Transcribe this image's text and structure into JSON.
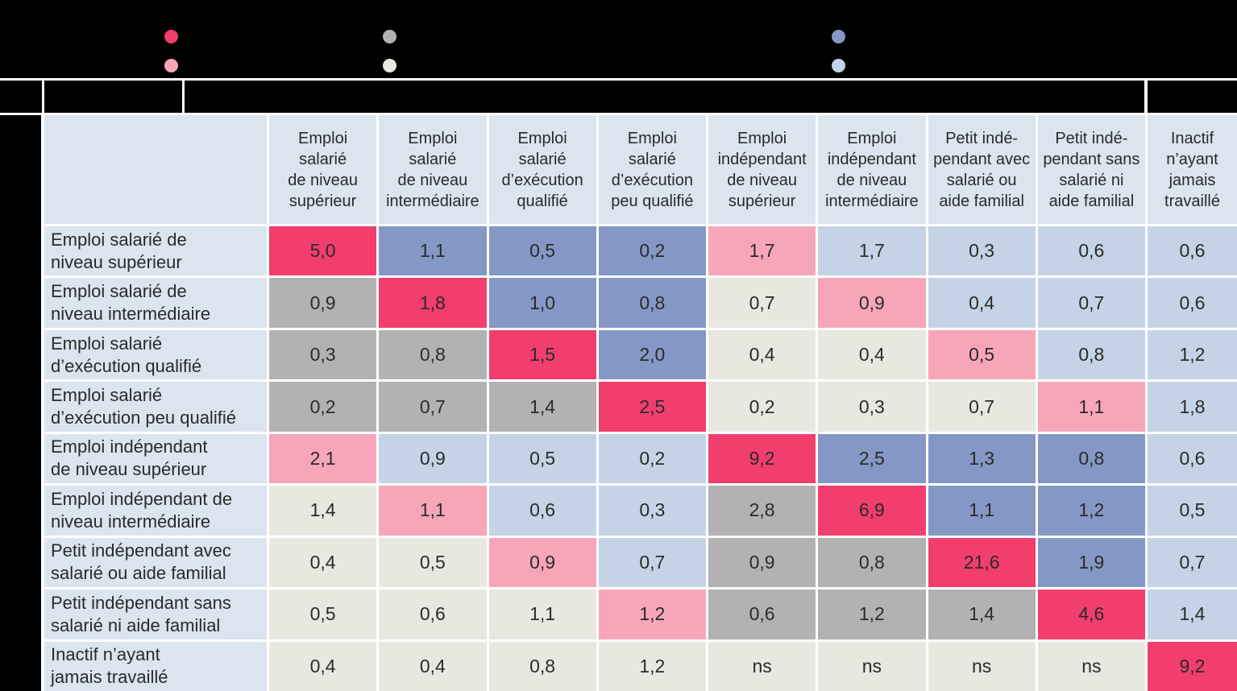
{
  "colors": {
    "red": "#F23E6C",
    "pink": "#F7A6B9",
    "gray": "#B2B2B2",
    "beige": "#E8E7E0",
    "dblue": "#8598C5",
    "lblue": "#C4D4E6",
    "header_bg": "#DBE5F0",
    "panel_black": "#000000",
    "cell_text": "#2A2A2A"
  },
  "legend": {
    "swatches": [
      {
        "name": "diagonal-red",
        "color_key": "red"
      },
      {
        "name": "light-pink",
        "color_key": "pink"
      },
      {
        "name": "gray",
        "color_key": "gray"
      },
      {
        "name": "light-beige",
        "color_key": "beige"
      },
      {
        "name": "dark-blue",
        "color_key": "dblue"
      },
      {
        "name": "light-blue",
        "color_key": "lblue"
      }
    ]
  },
  "table": {
    "corner_label": "",
    "column_headers": [
      "Emploi\nsalarié\nde niveau\nsupérieur",
      "Emploi\nsalarié\nde niveau\nintermédiaire",
      "Emploi\nsalarié\nd’exécution\nqualifié",
      "Emploi\nsalarié\nd’exécution\npeu qualifié",
      "Emploi\nindépendant\nde niveau\nsupérieur",
      "Emploi\nindépendant\nde niveau\nintermédiaire",
      "Petit indé-\npendant avec\nsalarié ou\naide familial",
      "Petit indé-\npendant sans\nsalarié ni\naide familial",
      "Inactif\nn’ayant\njamais\ntravaillé"
    ],
    "rows": [
      {
        "label": "Emploi salarié de\nniveau supérieur",
        "cells": [
          {
            "v": "5,0",
            "c": "red"
          },
          {
            "v": "1,1",
            "c": "dblue"
          },
          {
            "v": "0,5",
            "c": "dblue"
          },
          {
            "v": "0,2",
            "c": "dblue"
          },
          {
            "v": "1,7",
            "c": "pink"
          },
          {
            "v": "1,7",
            "c": "lblue"
          },
          {
            "v": "0,3",
            "c": "lblue"
          },
          {
            "v": "0,6",
            "c": "lblue"
          },
          {
            "v": "0,6",
            "c": "lblue"
          }
        ]
      },
      {
        "label": "Emploi salarié de\nniveau intermédiaire",
        "cells": [
          {
            "v": "0,9",
            "c": "gray"
          },
          {
            "v": "1,8",
            "c": "red"
          },
          {
            "v": "1,0",
            "c": "dblue"
          },
          {
            "v": "0,8",
            "c": "dblue"
          },
          {
            "v": "0,7",
            "c": "beige"
          },
          {
            "v": "0,9",
            "c": "pink"
          },
          {
            "v": "0,4",
            "c": "lblue"
          },
          {
            "v": "0,7",
            "c": "lblue"
          },
          {
            "v": "0,6",
            "c": "lblue"
          }
        ]
      },
      {
        "label": "Emploi salarié\nd’exécution qualifié",
        "cells": [
          {
            "v": "0,3",
            "c": "gray"
          },
          {
            "v": "0,8",
            "c": "gray"
          },
          {
            "v": "1,5",
            "c": "red"
          },
          {
            "v": "2,0",
            "c": "dblue"
          },
          {
            "v": "0,4",
            "c": "beige"
          },
          {
            "v": "0,4",
            "c": "beige"
          },
          {
            "v": "0,5",
            "c": "pink"
          },
          {
            "v": "0,8",
            "c": "lblue"
          },
          {
            "v": "1,2",
            "c": "lblue"
          }
        ]
      },
      {
        "label": "Emploi salarié\nd’exécution peu qualifié",
        "cells": [
          {
            "v": "0,2",
            "c": "gray"
          },
          {
            "v": "0,7",
            "c": "gray"
          },
          {
            "v": "1,4",
            "c": "gray"
          },
          {
            "v": "2,5",
            "c": "red"
          },
          {
            "v": "0,2",
            "c": "beige"
          },
          {
            "v": "0,3",
            "c": "beige"
          },
          {
            "v": "0,7",
            "c": "beige"
          },
          {
            "v": "1,1",
            "c": "pink"
          },
          {
            "v": "1,8",
            "c": "lblue"
          }
        ]
      },
      {
        "label": "Emploi indépendant\nde niveau supérieur",
        "cells": [
          {
            "v": "2,1",
            "c": "pink"
          },
          {
            "v": "0,9",
            "c": "lblue"
          },
          {
            "v": "0,5",
            "c": "lblue"
          },
          {
            "v": "0,2",
            "c": "lblue"
          },
          {
            "v": "9,2",
            "c": "red"
          },
          {
            "v": "2,5",
            "c": "dblue"
          },
          {
            "v": "1,3",
            "c": "dblue"
          },
          {
            "v": "0,8",
            "c": "dblue"
          },
          {
            "v": "0,6",
            "c": "lblue"
          }
        ]
      },
      {
        "label": "Emploi indépendant de\nniveau intermédiaire",
        "cells": [
          {
            "v": "1,4",
            "c": "beige"
          },
          {
            "v": "1,1",
            "c": "pink"
          },
          {
            "v": "0,6",
            "c": "lblue"
          },
          {
            "v": "0,3",
            "c": "lblue"
          },
          {
            "v": "2,8",
            "c": "gray"
          },
          {
            "v": "6,9",
            "c": "red"
          },
          {
            "v": "1,1",
            "c": "dblue"
          },
          {
            "v": "1,2",
            "c": "dblue"
          },
          {
            "v": "0,5",
            "c": "lblue"
          }
        ]
      },
      {
        "label": "Petit indépendant avec\nsalarié ou aide familial",
        "cells": [
          {
            "v": "0,4",
            "c": "beige"
          },
          {
            "v": "0,5",
            "c": "beige"
          },
          {
            "v": "0,9",
            "c": "pink"
          },
          {
            "v": "0,7",
            "c": "lblue"
          },
          {
            "v": "0,9",
            "c": "gray"
          },
          {
            "v": "0,8",
            "c": "gray"
          },
          {
            "v": "21,6",
            "c": "red"
          },
          {
            "v": "1,9",
            "c": "dblue"
          },
          {
            "v": "0,7",
            "c": "lblue"
          }
        ]
      },
      {
        "label": "Petit indépendant sans\nsalarié ni aide familial",
        "cells": [
          {
            "v": "0,5",
            "c": "beige"
          },
          {
            "v": "0,6",
            "c": "beige"
          },
          {
            "v": "1,1",
            "c": "beige"
          },
          {
            "v": "1,2",
            "c": "pink"
          },
          {
            "v": "0,6",
            "c": "gray"
          },
          {
            "v": "1,2",
            "c": "gray"
          },
          {
            "v": "1,4",
            "c": "gray"
          },
          {
            "v": "4,6",
            "c": "red"
          },
          {
            "v": "1,4",
            "c": "lblue"
          }
        ]
      },
      {
        "label": "Inactif n’ayant\njamais travaillé",
        "cells": [
          {
            "v": "0,4",
            "c": "beige"
          },
          {
            "v": "0,4",
            "c": "beige"
          },
          {
            "v": "0,8",
            "c": "beige"
          },
          {
            "v": "1,2",
            "c": "beige"
          },
          {
            "v": "ns",
            "c": "beige"
          },
          {
            "v": "ns",
            "c": "beige"
          },
          {
            "v": "ns",
            "c": "beige"
          },
          {
            "v": "ns",
            "c": "beige"
          },
          {
            "v": "9,2",
            "c": "red"
          }
        ]
      }
    ]
  },
  "chart_data": {
    "type": "heatmap",
    "title": "",
    "rows": [
      "Emploi salarié de niveau supérieur",
      "Emploi salarié de niveau intermédiaire",
      "Emploi salarié d’exécution qualifié",
      "Emploi salarié d’exécution peu qualifié",
      "Emploi indépendant de niveau supérieur",
      "Emploi indépendant de niveau intermédiaire",
      "Petit indépendant avec salarié ou aide familial",
      "Petit indépendant sans salarié ni aide familial",
      "Inactif n’ayant jamais travaillé"
    ],
    "columns": [
      "Emploi salarié de niveau supérieur",
      "Emploi salarié de niveau intermédiaire",
      "Emploi salarié d’exécution qualifié",
      "Emploi salarié d’exécution peu qualifié",
      "Emploi indépendant de niveau supérieur",
      "Emploi indépendant de niveau intermédiaire",
      "Petit indépendant avec salarié ou aide familial",
      "Petit indépendant sans salarié ni aide familial",
      "Inactif n’ayant jamais travaillé"
    ],
    "values": [
      [
        5.0,
        1.1,
        0.5,
        0.2,
        1.7,
        1.7,
        0.3,
        0.6,
        0.6
      ],
      [
        0.9,
        1.8,
        1.0,
        0.8,
        0.7,
        0.9,
        0.4,
        0.7,
        0.6
      ],
      [
        0.3,
        0.8,
        1.5,
        2.0,
        0.4,
        0.4,
        0.5,
        0.8,
        1.2
      ],
      [
        0.2,
        0.7,
        1.4,
        2.5,
        0.2,
        0.3,
        0.7,
        1.1,
        1.8
      ],
      [
        2.1,
        0.9,
        0.5,
        0.2,
        9.2,
        2.5,
        1.3,
        0.8,
        0.6
      ],
      [
        1.4,
        1.1,
        0.6,
        0.3,
        2.8,
        6.9,
        1.1,
        1.2,
        0.5
      ],
      [
        0.4,
        0.5,
        0.9,
        0.7,
        0.9,
        0.8,
        21.6,
        1.9,
        0.7
      ],
      [
        0.5,
        0.6,
        1.1,
        1.2,
        0.6,
        1.2,
        1.4,
        4.6,
        1.4
      ],
      [
        0.4,
        0.4,
        0.8,
        1.2,
        null,
        null,
        null,
        null,
        9.2
      ]
    ],
    "not_significant_marker": "ns",
    "cell_color_keys": [
      [
        "red",
        "dblue",
        "dblue",
        "dblue",
        "pink",
        "lblue",
        "lblue",
        "lblue",
        "lblue"
      ],
      [
        "gray",
        "red",
        "dblue",
        "dblue",
        "beige",
        "pink",
        "lblue",
        "lblue",
        "lblue"
      ],
      [
        "gray",
        "gray",
        "red",
        "dblue",
        "beige",
        "beige",
        "pink",
        "lblue",
        "lblue"
      ],
      [
        "gray",
        "gray",
        "gray",
        "red",
        "beige",
        "beige",
        "beige",
        "pink",
        "lblue"
      ],
      [
        "pink",
        "lblue",
        "lblue",
        "lblue",
        "red",
        "dblue",
        "dblue",
        "dblue",
        "lblue"
      ],
      [
        "beige",
        "pink",
        "lblue",
        "lblue",
        "gray",
        "red",
        "dblue",
        "dblue",
        "lblue"
      ],
      [
        "beige",
        "beige",
        "pink",
        "lblue",
        "gray",
        "gray",
        "red",
        "dblue",
        "lblue"
      ],
      [
        "beige",
        "beige",
        "beige",
        "pink",
        "gray",
        "gray",
        "gray",
        "red",
        "lblue"
      ],
      [
        "beige",
        "beige",
        "beige",
        "beige",
        "beige",
        "beige",
        "beige",
        "beige",
        "red"
      ]
    ],
    "legend_position": "top",
    "grid": false
  }
}
